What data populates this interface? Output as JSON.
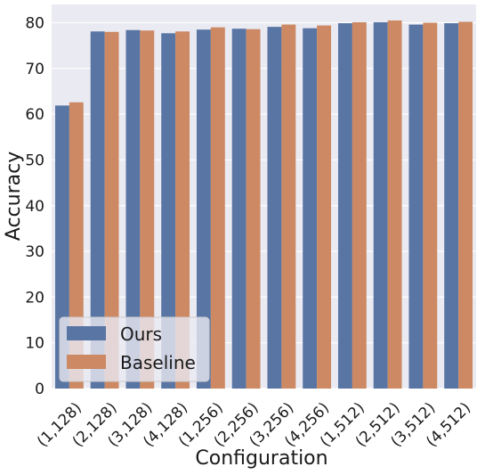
{
  "chart_data": {
    "type": "bar",
    "xlabel": "Configuration",
    "ylabel": "Accuracy",
    "ylim": [
      0,
      84
    ],
    "yticks": [
      0,
      10,
      20,
      30,
      40,
      50,
      60,
      70,
      80
    ],
    "grid": true,
    "legend_position": "lower-left",
    "categories": [
      "(1,128)",
      "(2,128)",
      "(3,128)",
      "(4,128)",
      "(1,256)",
      "(2,256)",
      "(3,256)",
      "(4,256)",
      "(1,512)",
      "(2,512)",
      "(3,512)",
      "(4,512)"
    ],
    "series": [
      {
        "name": "Ours",
        "color": "#5975a4",
        "values": [
          61.9,
          78.1,
          78.4,
          77.7,
          78.5,
          78.7,
          79.1,
          78.8,
          79.9,
          80.1,
          79.6,
          79.9
        ]
      },
      {
        "name": "Baseline",
        "color": "#cc8963",
        "values": [
          62.6,
          78.0,
          78.3,
          78.1,
          79.0,
          78.6,
          79.6,
          79.4,
          80.1,
          80.5,
          80.0,
          80.2
        ]
      }
    ]
  }
}
